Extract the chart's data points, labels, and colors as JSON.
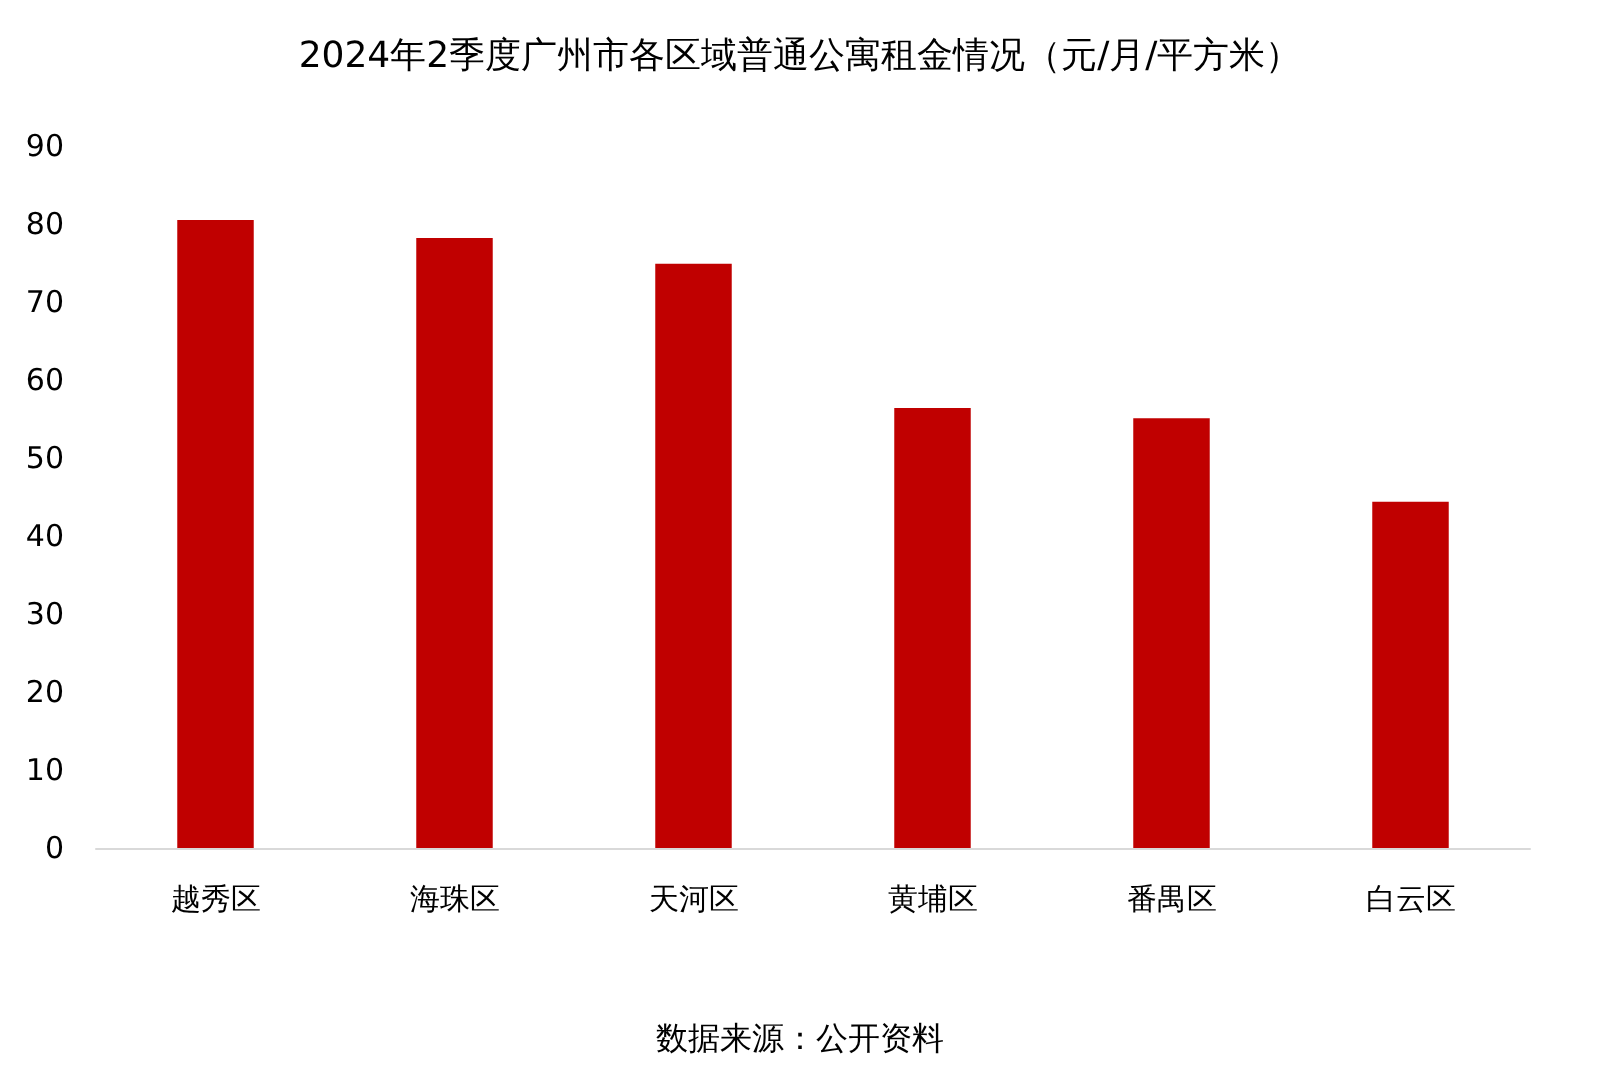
{
  "chart_data": {
    "type": "bar",
    "title": "2024年2季度广州市各区域普通公寓租金情况（元/月/平方米）",
    "categories": [
      "越秀区",
      "海珠区",
      "天河区",
      "黄埔区",
      "番禺区",
      "白云区"
    ],
    "values": [
      80.5,
      78.2,
      74.9,
      56.4,
      55.1,
      44.4
    ],
    "color": "#c00000",
    "ylim": [
      0,
      90
    ],
    "yticks": [
      0,
      10,
      20,
      30,
      40,
      50,
      60,
      70,
      80,
      90
    ],
    "grid": false,
    "annotations": [
      "数据来源：公开资料"
    ]
  }
}
